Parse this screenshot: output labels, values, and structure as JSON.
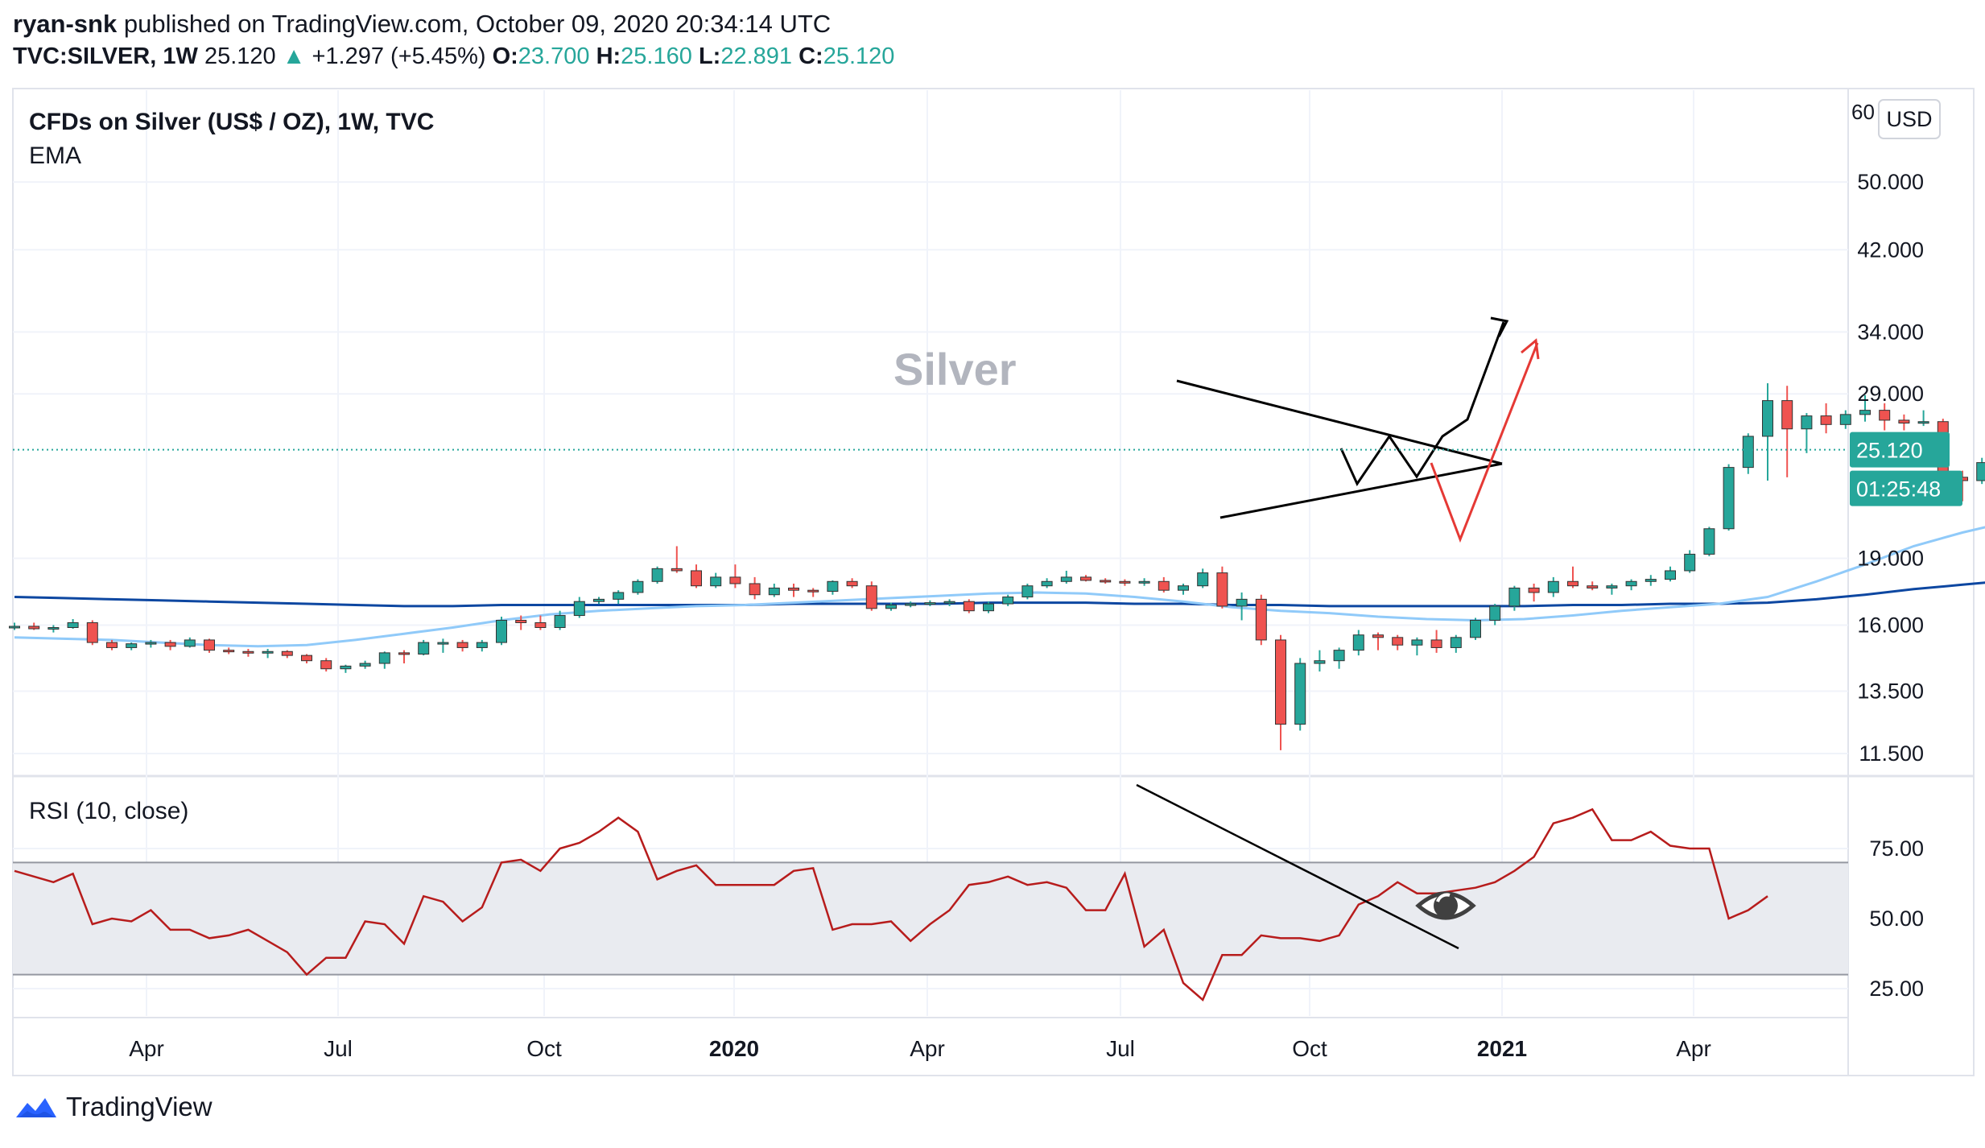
{
  "header": {
    "author": "ryan-snk",
    "published_text": "published on TradingView.com, October 09, 2020 20:34:14 UTC",
    "symbol": "TVC:SILVER, 1W",
    "last": "25.120",
    "change": "+1.297 (+5.45%)",
    "o_label": "O:",
    "o_value": "23.700",
    "h_label": "H:",
    "h_value": "25.160",
    "l_label": "L:",
    "l_value": "22.891",
    "c_label": "C:",
    "c_value": "25.120"
  },
  "legend": {
    "title": "CFDs on Silver (US$ / OZ), 1W, TVC",
    "indicator": "EMA",
    "watermark": "Silver",
    "rsi_title": "RSI (10, close)"
  },
  "axis": {
    "currency": "USD",
    "price_top_partial": "60",
    "last_price_tag": "25.120",
    "countdown_tag": "01:25:48"
  },
  "colors": {
    "up": "#26a69a",
    "down": "#ef5350",
    "ema_fast": "#90caf9",
    "ema_slow": "#0d47a1",
    "rsi": "#b71c1c",
    "projection_red": "#e53935",
    "projection_black": "#000000",
    "tag_bg": "#26a69a"
  },
  "footer": {
    "brand": "TradingView"
  },
  "chart_data": [
    {
      "type": "candlestick",
      "title": "CFDs on Silver (US$ / OZ), 1W, TVC",
      "scale": "log",
      "y_ticks": [
        11.5,
        13.5,
        16,
        19,
        29,
        34,
        42,
        50
      ],
      "y_tick_labels": [
        "11.500",
        "13.500",
        "16.000",
        "19.000",
        "29.000",
        "34.000",
        "42.000",
        "50.000"
      ],
      "x_ticks": [
        "Apr",
        "Jul",
        "Oct",
        "2020",
        "Apr",
        "Jul",
        "Oct",
        "2021",
        "Apr"
      ],
      "candles": [
        [
          15.9,
          16.1,
          15.8,
          15.95
        ],
        [
          15.95,
          16.1,
          15.8,
          15.85
        ],
        [
          15.85,
          16.0,
          15.7,
          15.9
        ],
        [
          15.9,
          16.25,
          15.85,
          16.1
        ],
        [
          16.1,
          16.2,
          15.2,
          15.3
        ],
        [
          15.3,
          15.4,
          15.0,
          15.1
        ],
        [
          15.1,
          15.3,
          15.0,
          15.25
        ],
        [
          15.25,
          15.4,
          15.1,
          15.3
        ],
        [
          15.3,
          15.4,
          15.0,
          15.15
        ],
        [
          15.15,
          15.5,
          15.1,
          15.4
        ],
        [
          15.4,
          15.45,
          14.9,
          15.0
        ],
        [
          15.0,
          15.1,
          14.85,
          14.95
        ],
        [
          14.95,
          15.05,
          14.75,
          14.9
        ],
        [
          14.9,
          15.05,
          14.7,
          14.95
        ],
        [
          14.95,
          15.0,
          14.7,
          14.8
        ],
        [
          14.8,
          14.85,
          14.5,
          14.6
        ],
        [
          14.6,
          14.7,
          14.2,
          14.3
        ],
        [
          14.3,
          14.45,
          14.15,
          14.4
        ],
        [
          14.4,
          14.6,
          14.3,
          14.5
        ],
        [
          14.5,
          14.95,
          14.3,
          14.9
        ],
        [
          14.9,
          15.0,
          14.5,
          14.85
        ],
        [
          14.85,
          15.4,
          14.8,
          15.3
        ],
        [
          15.3,
          15.45,
          14.9,
          15.3
        ],
        [
          15.3,
          15.4,
          14.95,
          15.1
        ],
        [
          15.1,
          15.4,
          14.95,
          15.3
        ],
        [
          15.3,
          16.35,
          15.2,
          16.2
        ],
        [
          16.2,
          16.4,
          15.8,
          16.1
        ],
        [
          16.1,
          16.4,
          15.8,
          15.9
        ],
        [
          15.9,
          16.6,
          15.8,
          16.4
        ],
        [
          16.4,
          17.2,
          16.3,
          17.0
        ],
        [
          17.0,
          17.2,
          16.9,
          17.1
        ],
        [
          17.1,
          17.5,
          16.9,
          17.4
        ],
        [
          17.4,
          18.0,
          17.3,
          17.9
        ],
        [
          17.9,
          18.6,
          17.8,
          18.5
        ],
        [
          18.5,
          19.6,
          18.3,
          18.4
        ],
        [
          18.4,
          18.7,
          17.6,
          17.7
        ],
        [
          17.7,
          18.3,
          17.6,
          18.1
        ],
        [
          18.1,
          18.7,
          17.6,
          17.8
        ],
        [
          17.8,
          18.1,
          17.1,
          17.3
        ],
        [
          17.3,
          17.8,
          17.2,
          17.6
        ],
        [
          17.6,
          17.8,
          17.2,
          17.5
        ],
        [
          17.5,
          17.6,
          17.2,
          17.45
        ],
        [
          17.45,
          17.95,
          17.3,
          17.9
        ],
        [
          17.9,
          18.05,
          17.6,
          17.7
        ],
        [
          17.7,
          17.9,
          16.6,
          16.7
        ],
        [
          16.7,
          16.95,
          16.6,
          16.85
        ],
        [
          16.85,
          17.0,
          16.75,
          16.9
        ],
        [
          16.9,
          17.05,
          16.8,
          16.95
        ],
        [
          16.95,
          17.1,
          16.8,
          17.0
        ],
        [
          17.0,
          17.1,
          16.5,
          16.6
        ],
        [
          16.6,
          17.0,
          16.5,
          16.9
        ],
        [
          16.9,
          17.3,
          16.8,
          17.2
        ],
        [
          17.2,
          17.8,
          17.1,
          17.7
        ],
        [
          17.7,
          18.05,
          17.6,
          17.9
        ],
        [
          17.9,
          18.4,
          17.8,
          18.1
        ],
        [
          18.1,
          18.2,
          17.9,
          17.95
        ],
        [
          17.95,
          18.05,
          17.8,
          17.9
        ],
        [
          17.9,
          18.0,
          17.7,
          17.85
        ],
        [
          17.85,
          18.05,
          17.7,
          17.9
        ],
        [
          17.9,
          18.1,
          17.4,
          17.5
        ],
        [
          17.5,
          17.8,
          17.3,
          17.7
        ],
        [
          17.7,
          18.5,
          17.6,
          18.3
        ],
        [
          18.3,
          18.6,
          16.7,
          16.8
        ],
        [
          16.8,
          17.4,
          16.2,
          17.1
        ],
        [
          17.1,
          17.3,
          15.2,
          15.4
        ],
        [
          15.4,
          15.6,
          11.6,
          12.4
        ],
        [
          12.4,
          14.7,
          12.2,
          14.5
        ],
        [
          14.5,
          15.0,
          14.2,
          14.6
        ],
        [
          14.6,
          15.1,
          14.3,
          15.0
        ],
        [
          15.0,
          15.8,
          14.8,
          15.6
        ],
        [
          15.6,
          15.7,
          15.0,
          15.5
        ],
        [
          15.5,
          15.6,
          15.0,
          15.2
        ],
        [
          15.2,
          15.5,
          14.8,
          15.4
        ],
        [
          15.4,
          15.8,
          14.9,
          15.1
        ],
        [
          15.1,
          15.6,
          14.9,
          15.5
        ],
        [
          15.5,
          16.3,
          15.4,
          16.2
        ],
        [
          16.2,
          16.9,
          16.0,
          16.8
        ],
        [
          16.8,
          17.7,
          16.6,
          17.6
        ],
        [
          17.6,
          17.8,
          17.0,
          17.4
        ],
        [
          17.4,
          18.1,
          17.2,
          17.9
        ],
        [
          17.9,
          18.6,
          17.6,
          17.7
        ],
        [
          17.7,
          17.9,
          17.5,
          17.6
        ],
        [
          17.6,
          17.8,
          17.3,
          17.7
        ],
        [
          17.7,
          18.0,
          17.5,
          17.9
        ],
        [
          17.9,
          18.2,
          17.7,
          18.0
        ],
        [
          18.0,
          18.6,
          17.9,
          18.4
        ],
        [
          18.4,
          19.4,
          18.3,
          19.2
        ],
        [
          19.2,
          20.6,
          19.1,
          20.5
        ],
        [
          20.5,
          24.2,
          20.4,
          24.0
        ],
        [
          24.0,
          26.2,
          23.6,
          26.0
        ],
        [
          26.0,
          29.8,
          23.2,
          28.5
        ],
        [
          28.5,
          29.6,
          23.4,
          26.5
        ],
        [
          26.5,
          27.6,
          24.9,
          27.4
        ],
        [
          27.4,
          28.3,
          26.2,
          26.8
        ],
        [
          26.8,
          27.8,
          26.5,
          27.5
        ],
        [
          27.5,
          28.9,
          27.0,
          27.8
        ],
        [
          27.8,
          28.3,
          26.4,
          27.1
        ],
        [
          27.1,
          27.5,
          26.4,
          26.9
        ],
        [
          26.9,
          27.8,
          26.7,
          27.0
        ],
        [
          27.0,
          27.2,
          22.5,
          23.4
        ],
        [
          23.4,
          23.8,
          22.0,
          23.2
        ],
        [
          23.2,
          24.6,
          23.0,
          24.3
        ],
        [
          23.7,
          25.16,
          22.891,
          25.12
        ]
      ],
      "ema_fast": [
        15.5,
        15.45,
        15.4,
        15.3,
        15.2,
        15.15,
        15.2,
        15.4,
        15.65,
        15.9,
        16.2,
        16.45,
        16.6,
        16.7,
        16.8,
        16.85,
        16.95,
        17.05,
        17.15,
        17.25,
        17.35,
        17.4,
        17.35,
        17.2,
        17.0,
        16.75,
        16.6,
        16.5,
        16.35,
        16.25,
        16.2,
        16.25,
        16.4,
        16.6,
        16.75,
        16.9,
        17.2,
        17.9,
        18.7,
        19.6,
        20.3,
        20.9,
        21.2
      ],
      "ema_slow": [
        17.2,
        17.15,
        17.1,
        17.05,
        17.0,
        16.95,
        16.9,
        16.85,
        16.8,
        16.8,
        16.85,
        16.85,
        16.85,
        16.85,
        16.85,
        16.85,
        16.9,
        16.9,
        16.9,
        16.9,
        16.95,
        16.95,
        16.95,
        16.9,
        16.9,
        16.85,
        16.85,
        16.8,
        16.8,
        16.8,
        16.8,
        16.8,
        16.85,
        16.85,
        16.9,
        16.9,
        16.95,
        17.1,
        17.3,
        17.55,
        17.75,
        17.95,
        18.05
      ]
    },
    {
      "type": "line",
      "title": "RSI (10, close)",
      "ylim": [
        15,
        100
      ],
      "y_ticks": [
        25,
        50,
        75
      ],
      "y_tick_labels": [
        "25.00",
        "50.00",
        "75.00"
      ],
      "band": [
        30,
        70
      ],
      "values": [
        67,
        65,
        63,
        66,
        48,
        50,
        49,
        53,
        46,
        46,
        43,
        44,
        46,
        42,
        38,
        30,
        36,
        36,
        49,
        48,
        41,
        58,
        56,
        49,
        54,
        70,
        71,
        67,
        75,
        77,
        81,
        86,
        81,
        64,
        67,
        69,
        62,
        62,
        62,
        62,
        67,
        68,
        46,
        48,
        48,
        49,
        42,
        48,
        53,
        62,
        63,
        65,
        62,
        63,
        61,
        53,
        53,
        66,
        40,
        46,
        27,
        21,
        37,
        37,
        44,
        43,
        43,
        42,
        44,
        55,
        58,
        63,
        59,
        59,
        60,
        61,
        63,
        67,
        72,
        84,
        86,
        89,
        78,
        78,
        81,
        76,
        75,
        75,
        50,
        53,
        58
      ]
    }
  ]
}
